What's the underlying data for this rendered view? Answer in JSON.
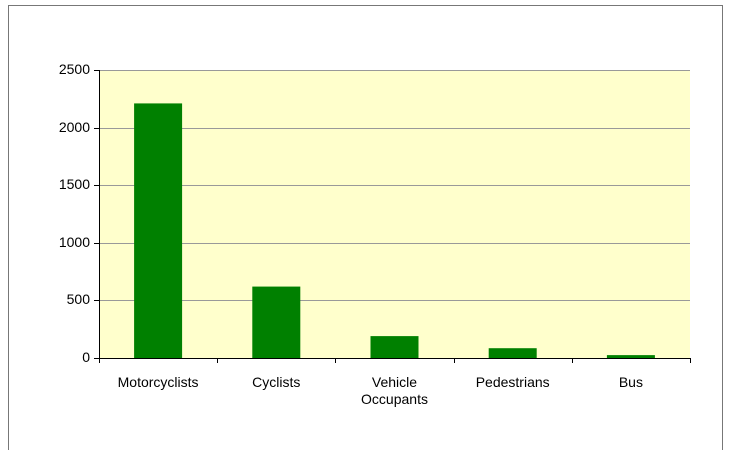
{
  "chart_data": {
    "type": "bar",
    "categories": [
      "Motorcyclists",
      "Cyclists",
      "Vehicle Occupants",
      "Pedestrians",
      "Bus"
    ],
    "values": [
      2210,
      620,
      190,
      85,
      25
    ],
    "color": "#008000",
    "plot_background": "#ffffcc",
    "ylim": [
      0,
      2500
    ],
    "yticks": [
      0,
      500,
      1000,
      1500,
      2000,
      2500
    ],
    "grid": true
  }
}
